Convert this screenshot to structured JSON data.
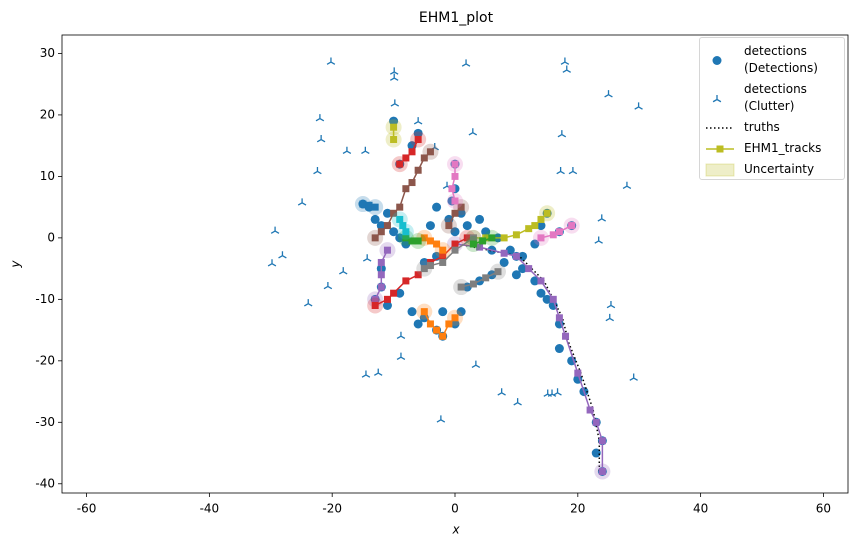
{
  "chart_data": {
    "type": "scatter",
    "title": "EHM1_plot",
    "xlabel": "x",
    "ylabel": "y",
    "xlim": [
      -64,
      64
    ],
    "ylim": [
      -41.5,
      33
    ],
    "xticks": [
      -60,
      -40,
      -20,
      0,
      20,
      40,
      60
    ],
    "yticks": [
      -40,
      -30,
      -20,
      -10,
      0,
      10,
      20,
      30
    ],
    "grid": false,
    "legend": "upper right",
    "series": [
      {
        "name": "detections\n(Detections)",
        "color": "#1f77b4",
        "marker": "circle",
        "x": [
          10,
          11,
          13,
          14,
          15,
          16,
          17,
          17,
          19,
          20,
          21,
          23,
          24,
          23,
          24,
          -15,
          -14,
          -13,
          -12,
          -11,
          -10,
          -9,
          -8,
          -10,
          -9,
          -7,
          -6,
          -4,
          -3,
          -1,
          0,
          1,
          2,
          4,
          5,
          6,
          7,
          9,
          11,
          10,
          8,
          -12,
          -12,
          -13,
          -11,
          -9,
          -7,
          -6,
          -5,
          -3,
          -2,
          0,
          1,
          -2,
          2,
          4,
          6,
          -5,
          -3,
          15,
          14,
          13,
          17,
          19,
          0,
          0,
          -0.5
        ],
        "y": [
          -3,
          -5,
          -7,
          -9,
          -10,
          -11,
          -14,
          -18,
          -20,
          -23,
          -25,
          -30,
          -33,
          -35,
          -38,
          5.5,
          5,
          3,
          2,
          4,
          1,
          0,
          -1,
          19,
          12,
          15,
          17,
          2,
          5,
          3,
          1,
          4,
          2,
          3,
          1,
          -2,
          0,
          -2,
          -3,
          -6,
          -4,
          -5,
          -8,
          -10,
          -11,
          -9,
          -12,
          -14,
          -13,
          -15,
          -16,
          -14,
          -12,
          -12,
          -8,
          -7,
          -6,
          -4,
          -3,
          4,
          2,
          -1,
          1,
          2,
          12,
          8,
          6
        ]
      },
      {
        "name": "detections\n(Clutter)",
        "color": "#1f77b4",
        "marker": "tri",
        "x": [
          -20.2,
          -9.9,
          -9.9,
          -6.0,
          1.8,
          2.9,
          17.9,
          18.2,
          25.0,
          29.9,
          -22.0,
          -21.8,
          -22.4,
          -24.9,
          -29.3,
          -28.1,
          -29.8,
          -20.7,
          -23.9,
          -18.2,
          -14.3,
          -14.5,
          -12.5,
          -8.8,
          -8.8,
          -2.3,
          3.4,
          7.6,
          10.2,
          15.1,
          15.8,
          16.7,
          29.1,
          25.4,
          25.2,
          23.4,
          23.9,
          28.0,
          17.2,
          19.2,
          17.4,
          -17.6,
          -14.6,
          -3.3,
          -1.3,
          -9.8
        ],
        "y": [
          28.6,
          27.0,
          26.0,
          18.9,
          28.3,
          17.1,
          28.6,
          27.3,
          23.3,
          21.3,
          19.4,
          16.0,
          10.8,
          5.7,
          1.1,
          -2.9,
          -4.2,
          -7.9,
          -10.7,
          -5.5,
          -3.4,
          -22.3,
          -22.0,
          -19.4,
          -16.0,
          -29.6,
          -20.7,
          -25.2,
          -26.8,
          -25.4,
          -25.4,
          -25.2,
          -22.8,
          -11.0,
          -13.1,
          -0.5,
          3.1,
          8.4,
          10.8,
          10.8,
          16.8,
          14.1,
          14.1,
          14.7,
          8.4,
          21.8
        ]
      },
      {
        "name": "truths",
        "color": "#000000",
        "linestyle": "dotted",
        "x": [
          0.5,
          10.5,
          14.5,
          17.5,
          18.5,
          20.5,
          22.5,
          23.5,
          23.5
        ],
        "y": [
          -1,
          -3,
          -7,
          -13,
          -17,
          -22,
          -28,
          -33,
          -38
        ]
      },
      {
        "name": "EHM1_tracks",
        "color": "#bcbd22",
        "marker": "square",
        "tracks": [
          {
            "color": "#9467bd",
            "x": [
              0,
              4,
              8,
              10,
              12,
              14,
              16,
              17,
              18,
              20,
              22,
              23,
              24,
              24
            ],
            "y": [
              -1,
              -1.5,
              -2.5,
              -3,
              -5,
              -7,
              -10,
              -13,
              -16,
              -22,
              -28,
              -30,
              -33,
              -38
            ]
          },
          {
            "color": "#9467bd",
            "x": [
              -13,
              -12,
              -12,
              -12,
              -11
            ],
            "y": [
              -10,
              -8,
              -6,
              -4,
              -2
            ]
          },
          {
            "color": "#bcbd22",
            "x": [
              -10,
              -10
            ],
            "y": [
              18,
              16
            ]
          },
          {
            "color": "#bcbd22",
            "x": [
              3,
              5,
              8,
              10,
              12,
              13,
              14,
              15
            ],
            "y": [
              0,
              0,
              0,
              0.5,
              1.5,
              2,
              3,
              4
            ]
          },
          {
            "color": "#d62728",
            "x": [
              -13,
              -11,
              -10,
              -8,
              -6,
              -4,
              -2,
              0,
              2
            ],
            "y": [
              -11,
              -10,
              -9,
              -7,
              -6,
              -4,
              -3,
              -1,
              0
            ]
          },
          {
            "color": "#d62728",
            "x": [
              -9,
              -8,
              -7,
              -6
            ],
            "y": [
              12,
              13,
              14,
              16
            ]
          },
          {
            "color": "#8c564b",
            "x": [
              -13,
              -12,
              -11,
              -10,
              -9,
              -8,
              -7,
              -6,
              -5,
              -4
            ],
            "y": [
              0,
              1,
              2,
              4,
              5,
              8,
              9,
              11,
              13,
              14
            ]
          },
          {
            "color": "#8c564b",
            "x": [
              -1,
              0,
              1
            ],
            "y": [
              2,
              4,
              5
            ]
          },
          {
            "color": "#e377c2",
            "x": [
              0,
              0,
              -0.5,
              0
            ],
            "y": [
              12,
              10,
              8,
              6
            ]
          },
          {
            "color": "#e377c2",
            "x": [
              14,
              16,
              17,
              19
            ],
            "y": [
              0,
              0.5,
              1,
              2
            ]
          },
          {
            "color": "#ff7f0e",
            "x": [
              -5,
              -4,
              -3,
              -2
            ],
            "y": [
              0,
              -0.5,
              -1,
              -2
            ]
          },
          {
            "color": "#ff7f0e",
            "x": [
              -5,
              -4,
              -3,
              -2,
              -1,
              0
            ],
            "y": [
              -12,
              -14,
              -15,
              -16,
              -14,
              -13
            ]
          },
          {
            "color": "#7f7f7f",
            "x": [
              -5,
              -4,
              -2,
              0,
              3
            ],
            "y": [
              -5,
              -4.5,
              -4,
              -2,
              0
            ]
          },
          {
            "color": "#7f7f7f",
            "x": [
              1,
              3,
              5,
              7
            ],
            "y": [
              -8,
              -7.5,
              -6.5,
              -5.5
            ]
          },
          {
            "color": "#2ca02c",
            "x": [
              -8,
              -7,
              -6
            ],
            "y": [
              0,
              -0.5,
              -0.5
            ]
          },
          {
            "color": "#2ca02c",
            "x": [
              3,
              4.5,
              6
            ],
            "y": [
              -1,
              -0.5,
              0
            ]
          },
          {
            "color": "#17becf",
            "x": [
              -9,
              -8.5,
              -8
            ],
            "y": [
              3,
              2,
              1
            ]
          },
          {
            "color": "#1f77b4",
            "x": [
              -15,
              -14,
              -13
            ],
            "y": [
              5.5,
              5.3,
              5
            ]
          }
        ]
      },
      {
        "name": "Uncertainty",
        "color": "#bcbd22"
      }
    ]
  }
}
